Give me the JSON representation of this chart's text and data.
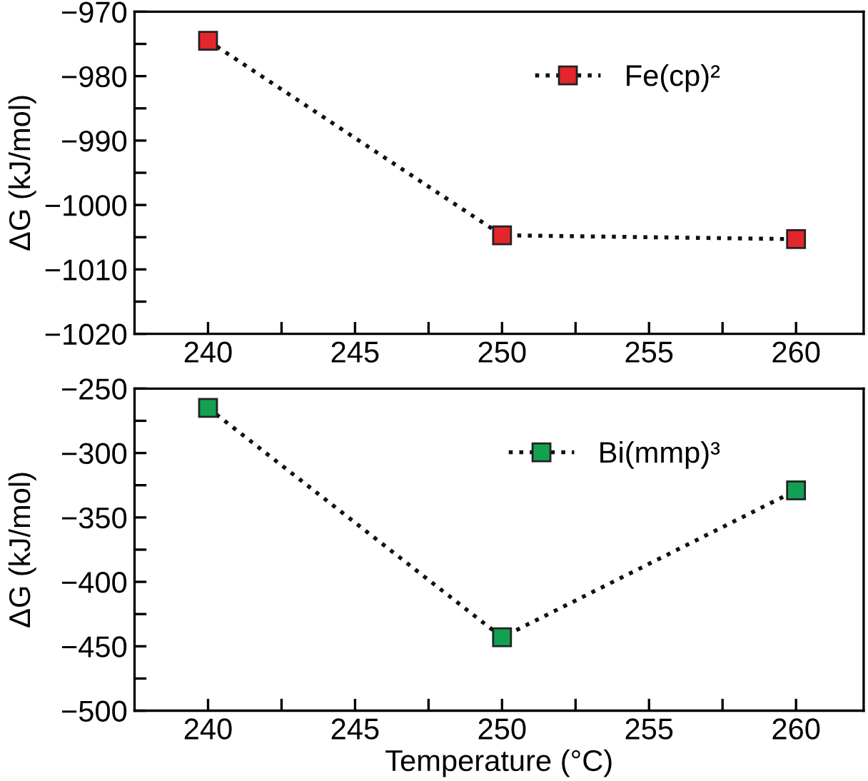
{
  "chart_data": [
    {
      "type": "line",
      "ylabel": "ΔG (kJ/mol)",
      "x": [
        240,
        250,
        260
      ],
      "series": [
        {
          "name": "Fe(cp)²",
          "color": "#e3262b",
          "values": [
            -974.5,
            -1004.7,
            -1005.3
          ]
        }
      ],
      "xlim": [
        237.5,
        262.3
      ],
      "xticks": [
        240,
        {
          "value": 242.5,
          "label": null
        },
        245,
        {
          "value": 247.5,
          "label": null
        },
        250,
        {
          "value": 252.5,
          "label": null
        },
        255,
        {
          "value": 257.5,
          "label": null
        },
        260
      ],
      "ylim": [
        -1020,
        -970
      ],
      "yticks": [
        -1020,
        {
          "value": -1015,
          "label": null
        },
        -1010,
        {
          "value": -1005,
          "label": null
        },
        -1000,
        {
          "value": -995,
          "label": null
        },
        -990,
        {
          "value": -985,
          "label": null
        },
        -980,
        {
          "value": -975,
          "label": null
        },
        -970
      ],
      "marker": "square",
      "line_style": "dotted",
      "legend": "top right",
      "grid": false
    },
    {
      "type": "line",
      "ylabel": "ΔG (kJ/mol)",
      "xlabel": "Temperature (°C)",
      "x": [
        240,
        250,
        260
      ],
      "series": [
        {
          "name": "Bi(mmp)³",
          "color": "#12a150",
          "values": [
            -265,
            -443,
            -329
          ]
        }
      ],
      "xlim": [
        237.5,
        262.3
      ],
      "xticks": [
        240,
        {
          "value": 242.5,
          "label": null
        },
        245,
        {
          "value": 247.5,
          "label": null
        },
        250,
        {
          "value": 252.5,
          "label": null
        },
        255,
        {
          "value": 257.5,
          "label": null
        },
        260
      ],
      "ylim": [
        -500,
        -250
      ],
      "yticks": [
        -500,
        {
          "value": -475,
          "label": null
        },
        -450,
        {
          "value": -425,
          "label": null
        },
        -400,
        {
          "value": -375,
          "label": null
        },
        -350,
        {
          "value": -325,
          "label": null
        },
        -300,
        {
          "value": -275,
          "label": null
        },
        -250
      ],
      "marker": "square",
      "line_style": "dotted",
      "legend": "top right",
      "grid": false
    }
  ]
}
